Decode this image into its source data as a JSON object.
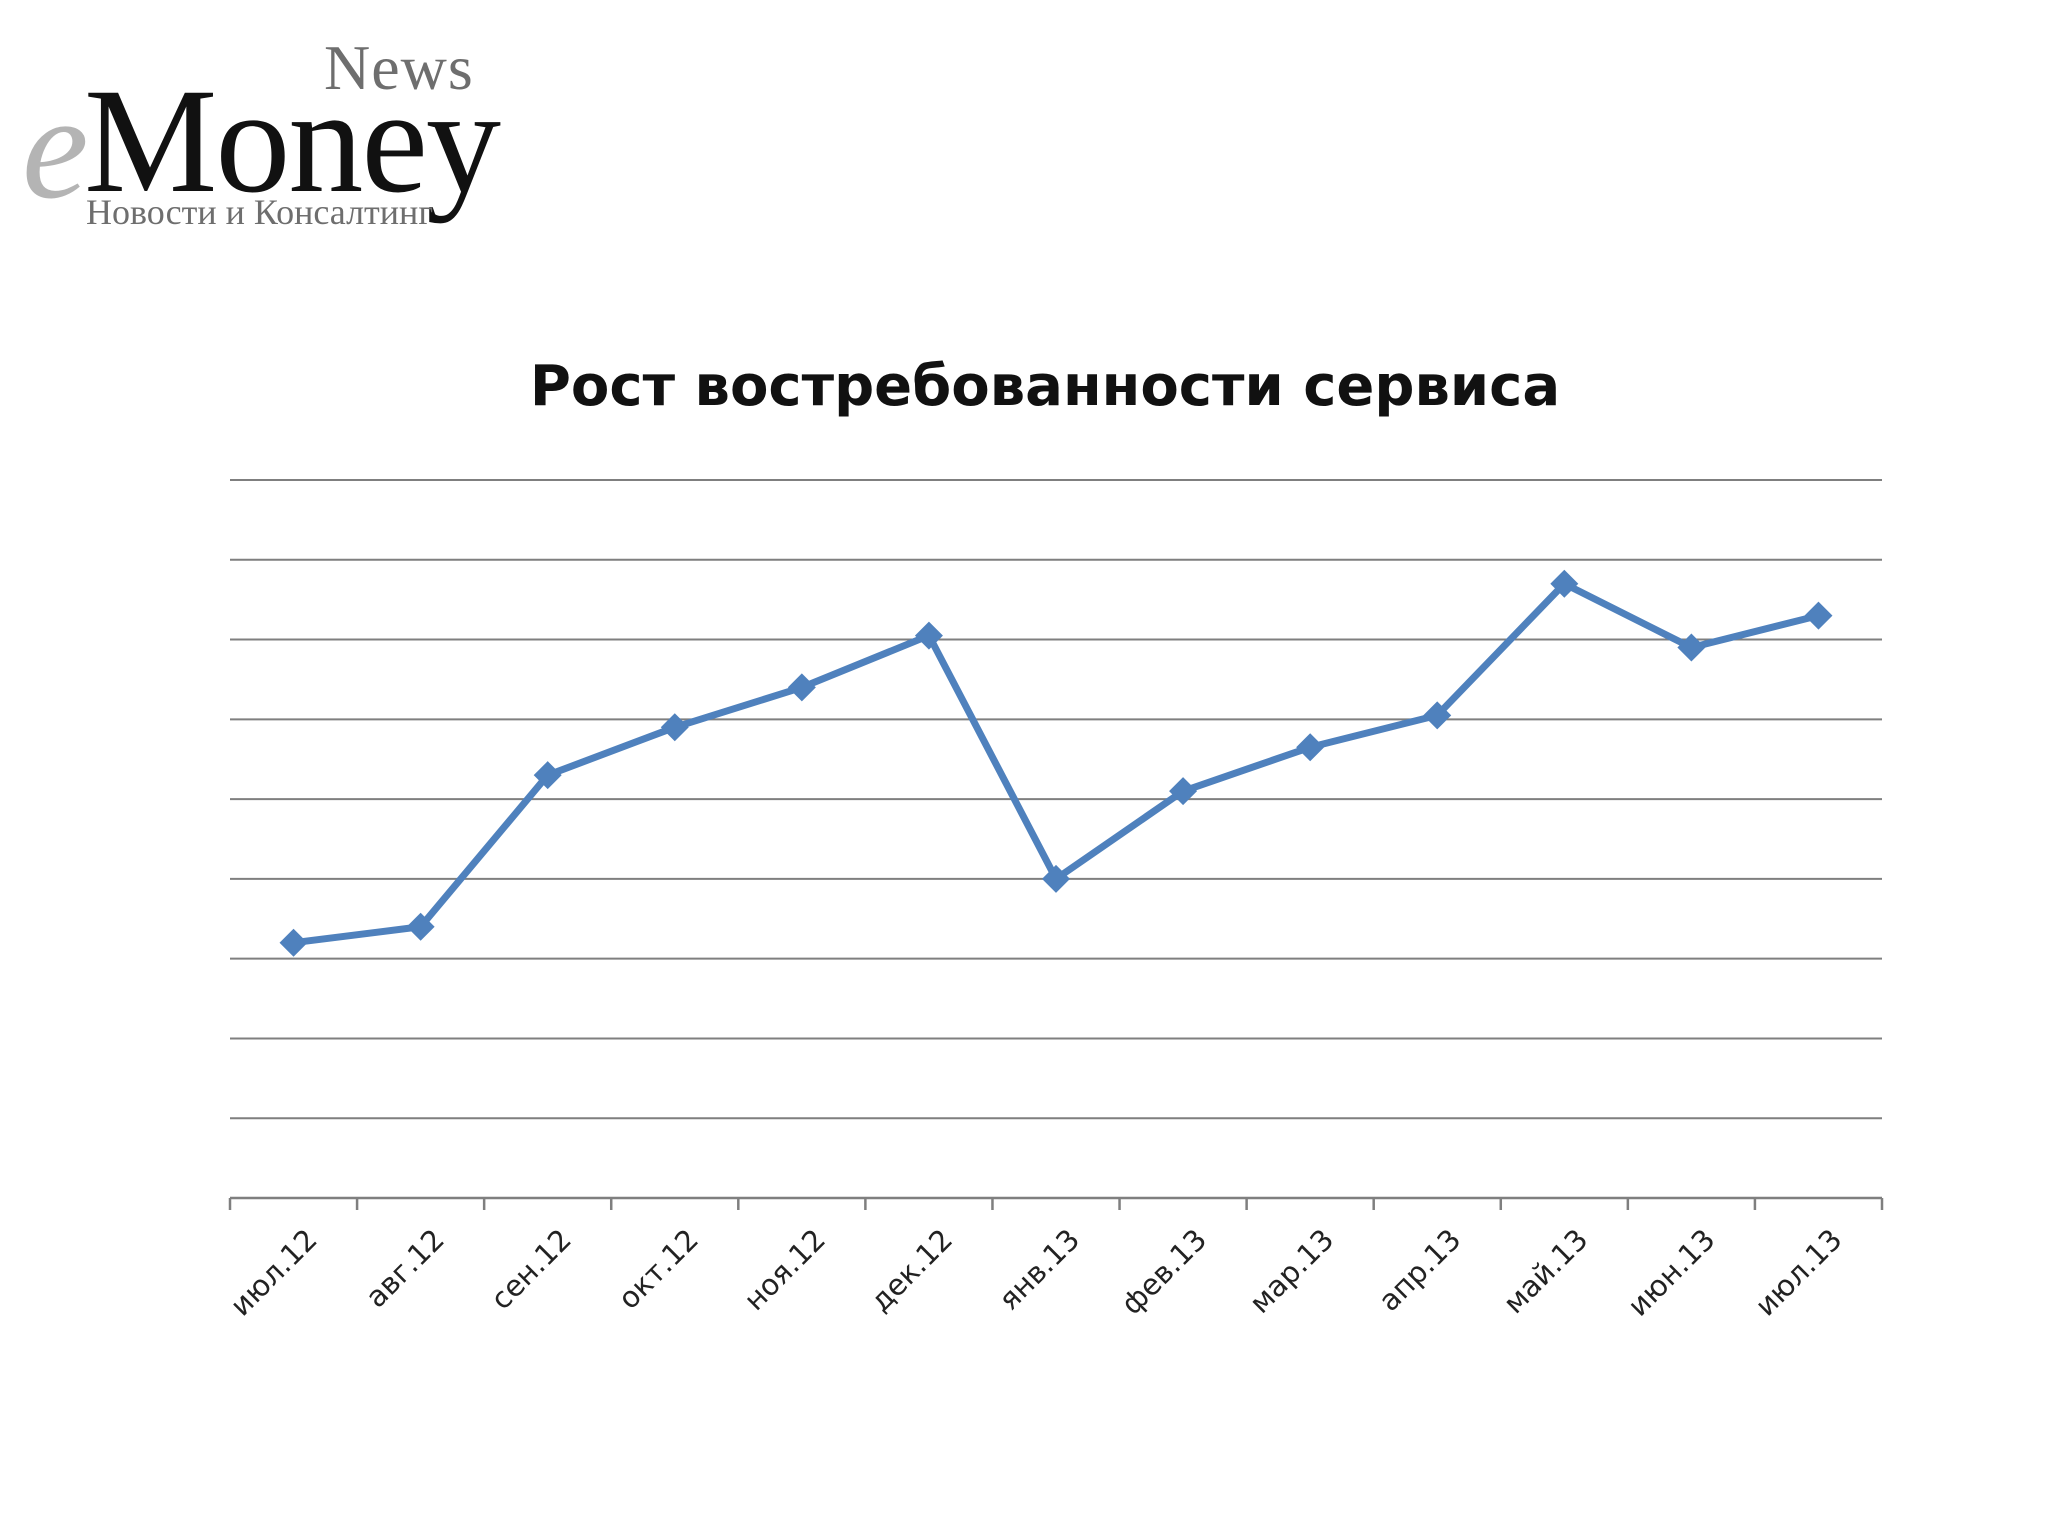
{
  "logo": {
    "prefix": "e",
    "name": "Money",
    "suffix": "News",
    "tagline": "Новости и Консалтинг"
  },
  "chart_data": {
    "type": "line",
    "title": "Рост востребованности сервиса",
    "xlabel": "",
    "ylabel": "",
    "categories": [
      "июл.12",
      "авг.12",
      "сен.12",
      "окт.12",
      "ноя.12",
      "дек.12",
      "янв.13",
      "фев.13",
      "мар.13",
      "апр.13",
      "май.13",
      "июн.13",
      "июл.13"
    ],
    "series": [
      {
        "values": [
          3.2,
          3.4,
          5.3,
          5.9,
          6.4,
          7.05,
          4.0,
          5.1,
          5.65,
          6.05,
          7.7,
          6.9,
          7.3
        ],
        "color": "#4f81bd"
      }
    ],
    "ylim": [
      0,
      9
    ],
    "grid": true,
    "y_tick_labels_shown": false,
    "legend": "none",
    "line_color": "#4f81bd",
    "grid_color": "#7f7f7f"
  }
}
